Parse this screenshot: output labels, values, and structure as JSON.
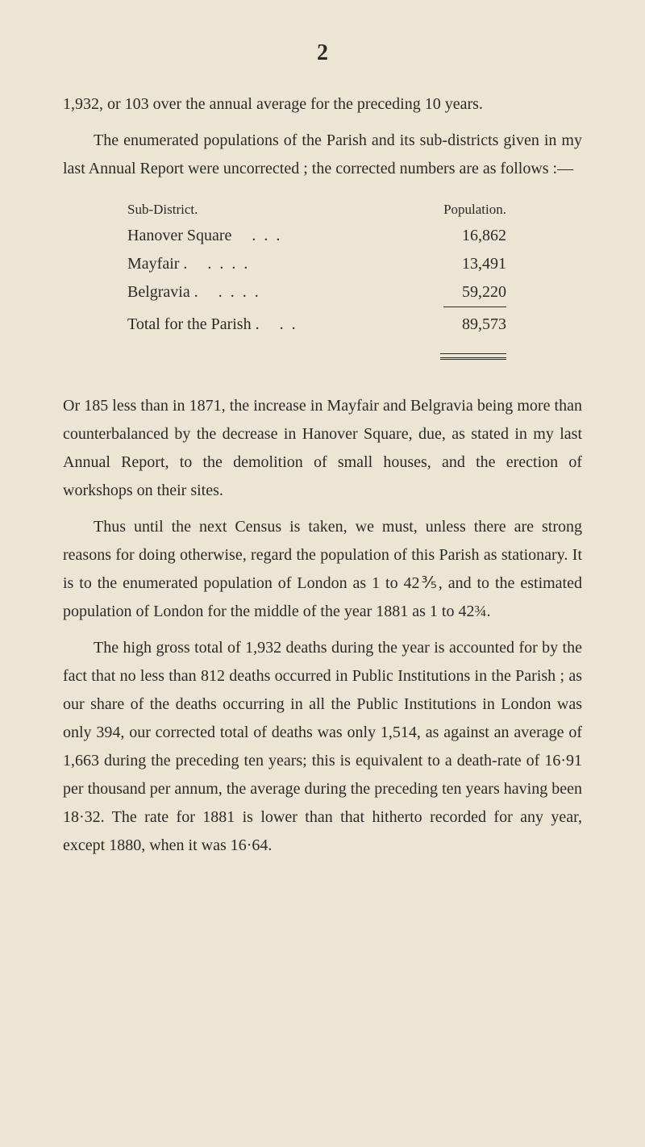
{
  "page_number": "2",
  "para1": "1,932, or 103 over the annual average for the preceding 10 years.",
  "para2": "The enumerated populations of the Parish and its sub-districts given in my last Annual Report were uncorrected ; the corrected numbers are as follows :—",
  "table": {
    "header_left": "Sub-District.",
    "header_right": "Population.",
    "rows": [
      {
        "label": "Hanover Square",
        "dots": "...",
        "value": "16,862"
      },
      {
        "label": "Mayfair .",
        "dots": "....",
        "value": "13,491"
      },
      {
        "label": "Belgravia .",
        "dots": "....",
        "value": "59,220"
      }
    ],
    "total_label": "Total for the Parish .",
    "total_dots": "..",
    "total_value": "89,573"
  },
  "para3": "Or 185 less than in 1871, the increase in Mayfair and Belgravia being more than counterbalanced by the decrease in Hanover Square, due, as stated in my last Annual Report, to the demolition of small houses, and the erection of workshops on their sites.",
  "para4": "Thus until the next Census is taken, we must, unless there are strong reasons for doing otherwise, regard the population of this Parish as stationary. It is to the enumerated population of London as 1 to 42⅗, and to the estimated population of London for the middle of the year 1881 as 1 to 42¾.",
  "para5": "The high gross total of 1,932 deaths during the year is accounted for by the fact that no less than 812 deaths occurred in Public Institutions in the Parish ; as our share of the deaths occurring in all the Public Institutions in London was only 394, our corrected total of deaths was only 1,514, as against an average of 1,663 during the preceding ten years; this is equivalent to a death-rate of 16·91 per thousand per annum, the average during the preceding ten years having been 18·32. The rate for 1881 is lower than that hitherto recorded for any year, except 1880, when it was 16·64."
}
